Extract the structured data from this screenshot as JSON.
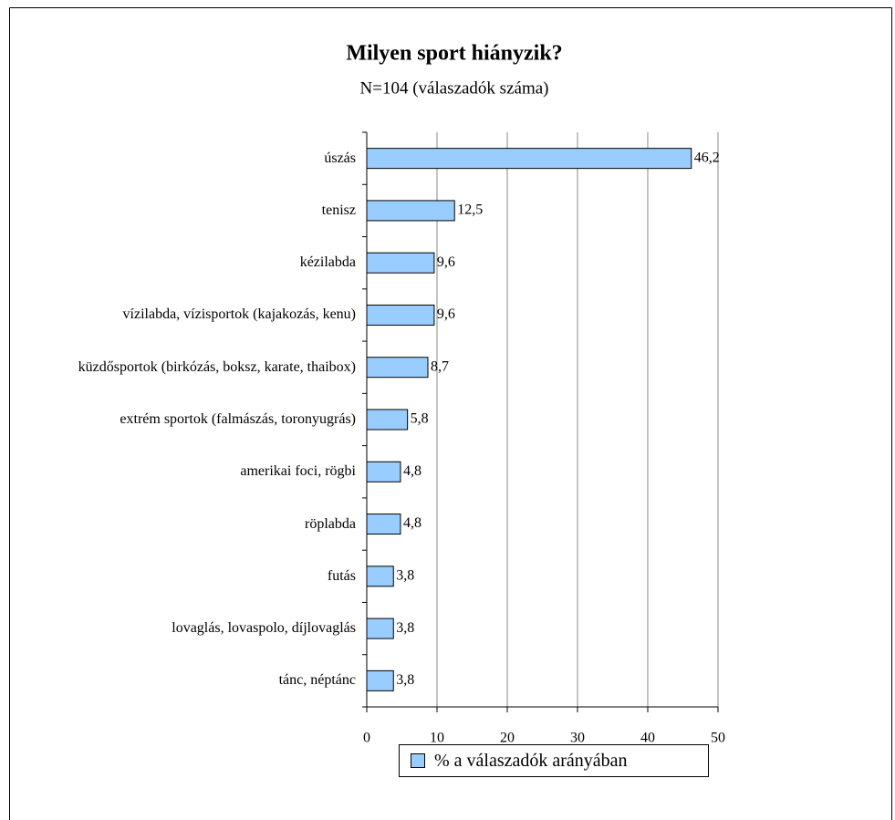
{
  "chart_data": {
    "type": "bar",
    "orientation": "horizontal",
    "title": "Milyen sport hiányzik?",
    "subtitle": "N=104 (válaszadók száma)",
    "categories": [
      "úszás",
      "tenisz",
      "kézilabda",
      "vízilabda, vízisportok (kajakozás, kenu)",
      "küzdősportok (birkózás, boksz, karate, thaibox)",
      "extrém sportok (falmászás, toronyugrás)",
      "amerikai foci, rögbi",
      "röplabda",
      "futás",
      "lovaglás, lovaspolo, díjlovaglás",
      "tánc, néptánc"
    ],
    "series": [
      {
        "name": "% a válaszadók arányában",
        "color": "#99ccff",
        "values": [
          46.2,
          12.5,
          9.6,
          9.6,
          8.7,
          5.8,
          4.8,
          4.8,
          3.8,
          3.8,
          3.8
        ],
        "value_labels": [
          "46,2",
          "12,5",
          "9,6",
          "9,6",
          "8,7",
          "5,8",
          "4,8",
          "4,8",
          "3,8",
          "3,8",
          "3,8"
        ]
      }
    ],
    "xlim": [
      0,
      50
    ],
    "xticks": [
      0,
      10,
      20,
      30,
      40,
      50
    ],
    "grid": true,
    "legend": "bottom"
  }
}
